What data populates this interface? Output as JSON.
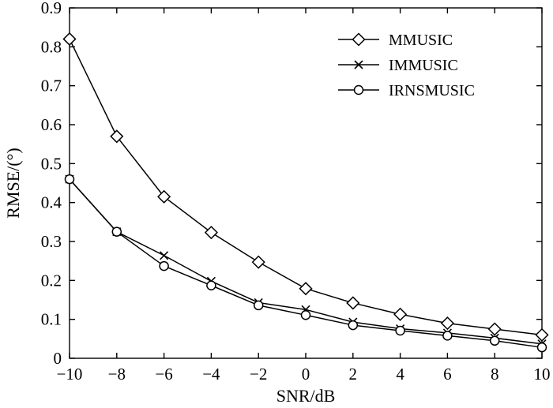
{
  "chart_data": {
    "type": "line",
    "title": "",
    "xlabel": "SNR/dB",
    "ylabel": "RMSE/(°)",
    "xlim": [
      -10,
      10
    ],
    "ylim": [
      0,
      0.9
    ],
    "x_ticks": [
      "−10",
      "−8",
      "−6",
      "−4",
      "−2",
      "0",
      "2",
      "4",
      "6",
      "8",
      "10"
    ],
    "y_ticks": [
      "0",
      "0.1",
      "0.2",
      "0.3",
      "0.4",
      "0.5",
      "0.6",
      "0.7",
      "0.8",
      "0.9"
    ],
    "x": [
      -10,
      -8,
      -6,
      -4,
      -2,
      0,
      2,
      4,
      6,
      8,
      10
    ],
    "grid": false,
    "legend_position": "top-right",
    "series": [
      {
        "name": "MMUSIC",
        "marker": "diamond",
        "color": "#000000",
        "values": [
          0.82,
          0.57,
          0.415,
          0.323,
          0.247,
          0.179,
          0.142,
          0.113,
          0.09,
          0.075,
          0.06
        ]
      },
      {
        "name": "IMMUSIC",
        "marker": "cross",
        "color": "#000000",
        "values": [
          0.46,
          0.325,
          0.264,
          0.198,
          0.143,
          0.125,
          0.093,
          0.076,
          0.065,
          0.052,
          0.037
        ]
      },
      {
        "name": "IRNSMUSIC",
        "marker": "circle",
        "color": "#000000",
        "values": [
          0.46,
          0.325,
          0.237,
          0.187,
          0.136,
          0.111,
          0.085,
          0.071,
          0.058,
          0.045,
          0.028
        ]
      }
    ]
  }
}
